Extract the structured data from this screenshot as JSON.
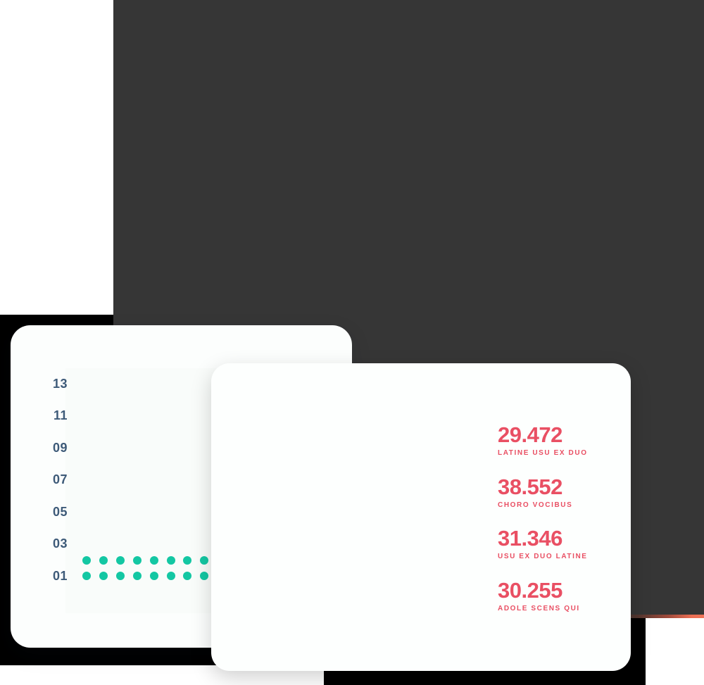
{
  "background": {
    "hero_panel_color": "#363636",
    "black_block_color": "#000000",
    "accent_strip_colors": [
      "#363636",
      "#ec6f54"
    ],
    "page_color": "#ffffff"
  },
  "chart_data": {
    "type": "scatter",
    "title": "",
    "xlabel": "",
    "ylabel": "",
    "y_ticks": [
      "13",
      "11",
      "09",
      "07",
      "05",
      "03",
      "01"
    ],
    "y_range": [
      1,
      13
    ],
    "grid": false,
    "legend": "none",
    "columns": 14,
    "values": [
      2,
      2,
      2,
      2,
      2,
      2,
      2,
      2,
      2,
      2,
      2,
      2,
      2,
      2
    ],
    "max_dots": 2,
    "dot_color": "#13c7a3",
    "tick_color": "#3d5a78"
  },
  "stats": {
    "accent": "#e94f63",
    "items": [
      {
        "value": "29.472",
        "label": "LATINE USU EX DUO"
      },
      {
        "value": "38.552",
        "label": "CHORO VOCIBUS"
      },
      {
        "value": "31.346",
        "label": "USU EX DUO LATINE"
      },
      {
        "value": "30.255",
        "label": "ADOLE SCENS QUI"
      }
    ]
  }
}
